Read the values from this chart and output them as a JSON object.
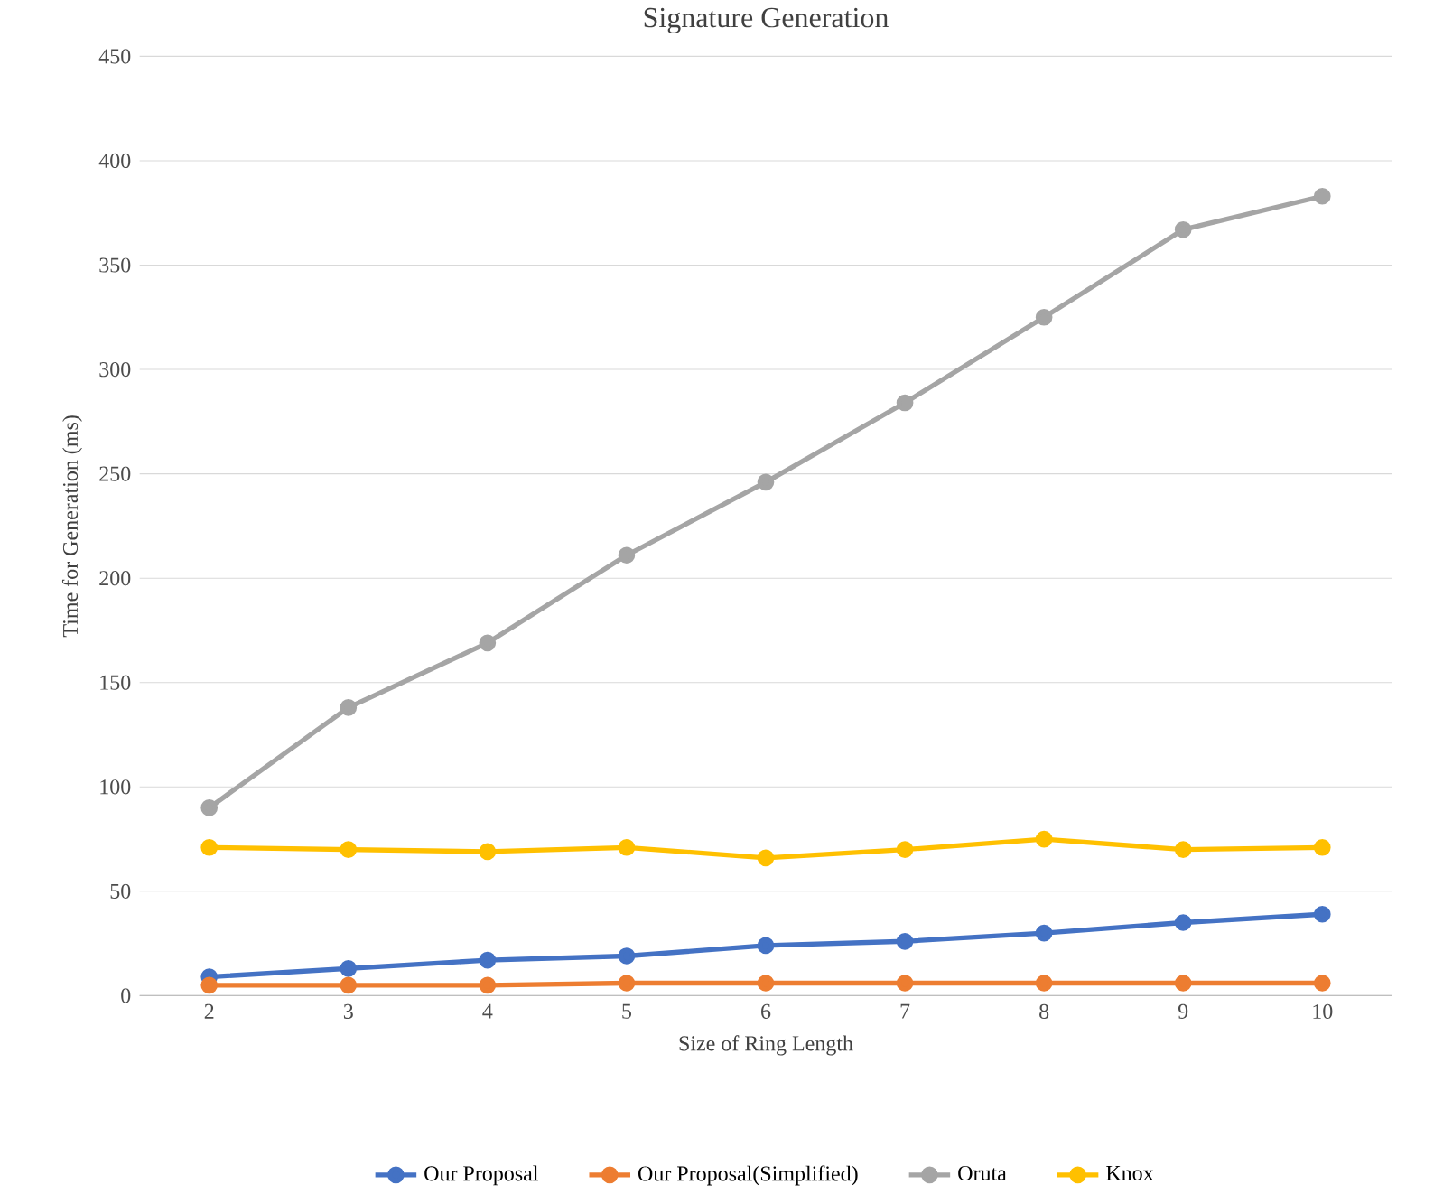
{
  "chart_data": {
    "type": "line",
    "title": "Signature Generation",
    "xlabel": "Size of Ring Length",
    "ylabel": "Time for Generation (ms)",
    "categories": [
      "2",
      "3",
      "4",
      "5",
      "6",
      "7",
      "8",
      "9",
      "10"
    ],
    "series": [
      {
        "name": "Our Proposal",
        "color": "#4472c4",
        "values": [
          9,
          13,
          17,
          19,
          24,
          26,
          30,
          35,
          39
        ]
      },
      {
        "name": "Our Proposal(Simplified)",
        "color": "#ed7d31",
        "values": [
          5,
          5,
          5,
          6,
          6,
          6,
          6,
          6,
          6
        ]
      },
      {
        "name": "Oruta",
        "color": "#a5a5a5",
        "values": [
          90,
          138,
          169,
          211,
          246,
          284,
          325,
          367,
          383
        ]
      },
      {
        "name": "Knox",
        "color": "#ffc000",
        "values": [
          71,
          70,
          69,
          71,
          66,
          70,
          75,
          70,
          71
        ]
      }
    ],
    "ylim": [
      0,
      450
    ],
    "yticks": [
      0,
      50,
      100,
      150,
      200,
      250,
      300,
      350,
      400,
      450
    ],
    "grid": "y",
    "legend": "bottom",
    "marker": "circle",
    "line_style": "solid"
  }
}
